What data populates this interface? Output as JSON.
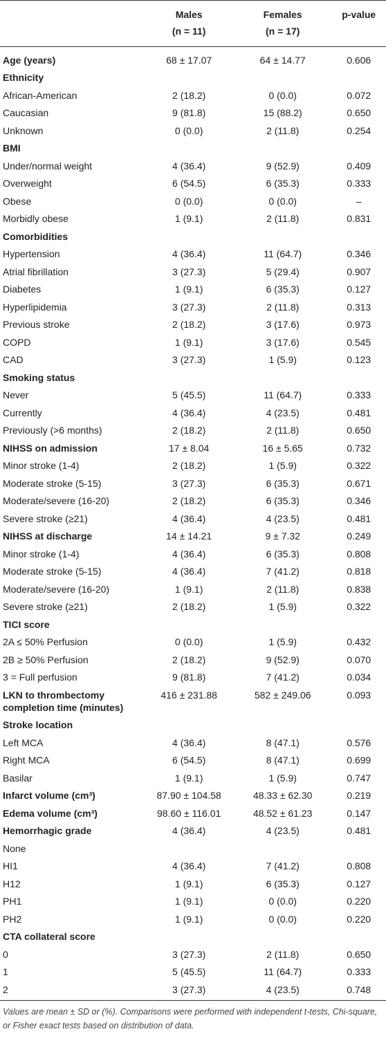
{
  "table": {
    "header": [
      {
        "lines": [
          "Males",
          "(n = 11)"
        ]
      },
      {
        "lines": [
          "Females",
          "(n = 17)"
        ]
      },
      {
        "lines": [
          "p-value"
        ]
      }
    ],
    "rows": [
      {
        "label": "Age (years)",
        "bold": true,
        "cells": [
          "68 ± 17.07",
          "64 ± 14.77",
          "0.606"
        ]
      },
      {
        "label": "Ethnicity",
        "bold": true
      },
      {
        "label": "African-American",
        "cells": [
          "2 (18.2)",
          "0 (0.0)",
          "0.072"
        ]
      },
      {
        "label": "Caucasian",
        "cells": [
          "9 (81.8)",
          "15 (88.2)",
          "0.650"
        ]
      },
      {
        "label": "Unknown",
        "cells": [
          "0 (0.0)",
          "2 (11.8)",
          "0.254"
        ]
      },
      {
        "label": "BMI",
        "bold": true
      },
      {
        "label": "Under/normal weight",
        "cells": [
          "4 (36.4)",
          "9 (52.9)",
          "0.409"
        ]
      },
      {
        "label": "Overweight",
        "cells": [
          "6 (54.5)",
          "6 (35.3)",
          "0.333"
        ]
      },
      {
        "label": "Obese",
        "cells": [
          "0 (0.0)",
          "0 (0.0)",
          "–"
        ]
      },
      {
        "label": "Morbidly obese",
        "cells": [
          "1 (9.1)",
          "2 (11.8)",
          "0.831"
        ]
      },
      {
        "label": "Comorbidities",
        "bold": true
      },
      {
        "label": "Hypertension",
        "cells": [
          "4 (36.4)",
          "11 (64.7)",
          "0.346"
        ]
      },
      {
        "label": "Atrial fibrillation",
        "cells": [
          "3 (27.3)",
          "5 (29.4)",
          "0.907"
        ]
      },
      {
        "label": "Diabetes",
        "cells": [
          "1 (9.1)",
          "6 (35.3)",
          "0.127"
        ]
      },
      {
        "label": "Hyperlipidemia",
        "cells": [
          "3 (27.3)",
          "2 (11.8)",
          "0.313"
        ]
      },
      {
        "label": "Previous stroke",
        "cells": [
          "2 (18.2)",
          "3 (17.6)",
          "0.973"
        ]
      },
      {
        "label": "COPD",
        "cells": [
          "1 (9.1)",
          "3 (17.6)",
          "0.545"
        ]
      },
      {
        "label": "CAD",
        "cells": [
          "3 (27.3)",
          "1 (5.9)",
          "0.123"
        ]
      },
      {
        "label": "Smoking status",
        "bold": true
      },
      {
        "label": "Never",
        "cells": [
          "5 (45.5)",
          "11 (64.7)",
          "0.333"
        ]
      },
      {
        "label": "Currently",
        "cells": [
          "4 (36.4)",
          "4 (23.5)",
          "0.481"
        ]
      },
      {
        "label": "Previously (>6 months)",
        "cells": [
          "2 (18.2)",
          "2 (11.8)",
          "0.650"
        ]
      },
      {
        "label": "NIHSS on admission",
        "bold": true,
        "cells": [
          "17 ± 8.04",
          "16 ± 5.65",
          "0.732"
        ]
      },
      {
        "label": "Minor stroke (1-4)",
        "cells": [
          "2 (18.2)",
          "1 (5.9)",
          "0.322"
        ]
      },
      {
        "label": "Moderate stroke (5-15)",
        "cells": [
          "3 (27.3)",
          "6 (35.3)",
          "0.671"
        ]
      },
      {
        "label": "Moderate/severe (16-20)",
        "cells": [
          "2 (18.2)",
          "6 (35.3)",
          "0.346"
        ]
      },
      {
        "label": "Severe stroke (≥21)",
        "cells": [
          "4 (36.4)",
          "4 (23.5)",
          "0.481"
        ]
      },
      {
        "label": "NIHSS at discharge",
        "bold": true,
        "cells": [
          "14 ± 14.21",
          "9 ± 7.32",
          "0.249"
        ]
      },
      {
        "label": "Minor stroke (1-4)",
        "cells": [
          "4 (36.4)",
          "6 (35.3)",
          "0.808"
        ]
      },
      {
        "label": "Moderate stroke (5-15)",
        "cells": [
          "4 (36.4)",
          "7 (41.2)",
          "0.818"
        ]
      },
      {
        "label": "Moderate/severe (16-20)",
        "cells": [
          "1 (9.1)",
          "2 (11.8)",
          "0.838"
        ]
      },
      {
        "label": "Severe stroke (≥21)",
        "cells": [
          "2 (18.2)",
          "1 (5.9)",
          "0.322"
        ]
      },
      {
        "label": "TICI score",
        "bold": true
      },
      {
        "label": "2A ≤ 50% Perfusion",
        "cells": [
          "0 (0.0)",
          "1 (5.9)",
          "0.432"
        ]
      },
      {
        "label": "2B ≥ 50% Perfusion",
        "cells": [
          "2 (18.2)",
          "9 (52.9)",
          "0.070"
        ]
      },
      {
        "label": "3 = Full perfusion",
        "cells": [
          "9 (81.8)",
          "7 (41.2)",
          "0.034"
        ]
      },
      {
        "label": "LKN to thrombectomy completion time (minutes)",
        "bold": true,
        "cells": [
          "416 ± 231.88",
          "582 ± 249.06",
          "0.093"
        ]
      },
      {
        "label": "Stroke location",
        "bold": true
      },
      {
        "label": "Left MCA",
        "cells": [
          "4 (36.4)",
          "8 (47.1)",
          "0.576"
        ]
      },
      {
        "label": "Right MCA",
        "cells": [
          "6 (54.5)",
          "8 (47.1)",
          "0.699"
        ]
      },
      {
        "label": "Basilar",
        "cells": [
          "1 (9.1)",
          "1 (5.9)",
          "0.747"
        ]
      },
      {
        "label": "Infarct volume (cm³)",
        "bold": true,
        "cells": [
          "87.90 ± 104.58",
          "48.33 ± 62.30",
          "0.219"
        ]
      },
      {
        "label": "Edema volume (cm³)",
        "bold": true,
        "cells": [
          "98.60 ± 116.01",
          "48.52 ± 61.23",
          "0.147"
        ]
      },
      {
        "label": "Hemorrhagic grade",
        "bold": true,
        "cells": [
          "4 (36.4)",
          "4 (23.5)",
          "0.481"
        ]
      },
      {
        "label": "None"
      },
      {
        "label": "HI1",
        "cells": [
          "4 (36.4)",
          "7 (41.2)",
          "0.808"
        ]
      },
      {
        "label": "H12",
        "cells": [
          "1 (9.1)",
          "6 (35.3)",
          "0.127"
        ]
      },
      {
        "label": "PH1",
        "cells": [
          "1 (9.1)",
          "0 (0.0)",
          "0.220"
        ]
      },
      {
        "label": "PH2",
        "cells": [
          "1 (9.1)",
          "0 (0.0)",
          "0.220"
        ]
      },
      {
        "label": "CTA collateral score",
        "bold": true
      },
      {
        "label": "0",
        "cells": [
          "3 (27.3)",
          "2 (11.8)",
          "0.650"
        ]
      },
      {
        "label": "1",
        "cells": [
          "5 (45.5)",
          "11 (64.7)",
          "0.333"
        ]
      },
      {
        "label": "2",
        "cells": [
          "3 (27.3)",
          "4 (23.5)",
          "0.748"
        ]
      }
    ]
  },
  "footnote": "Values are mean ± SD or (%). Comparisons were performed with independent t-tests, Chi-square, or Fisher exact tests based on distribution of data."
}
